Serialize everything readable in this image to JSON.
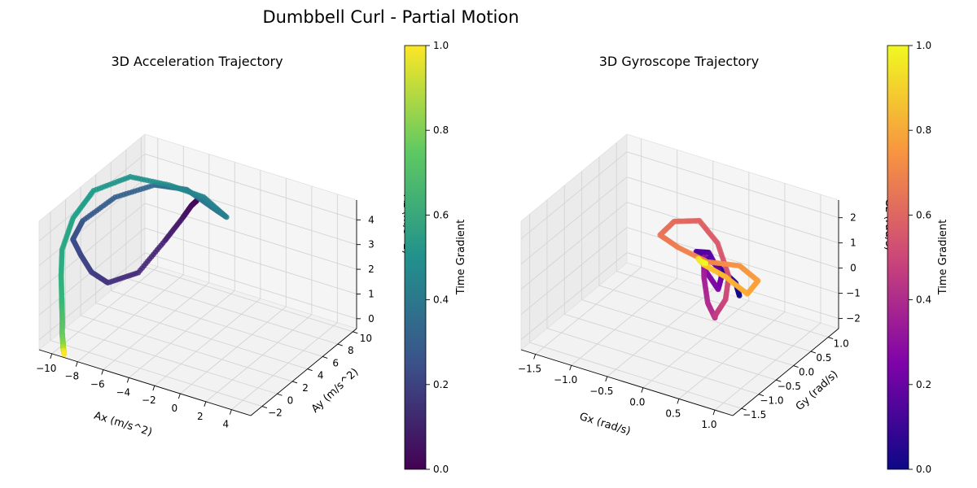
{
  "figure": {
    "title": "Dumbbell Curl - Partial Motion"
  },
  "chart_data": [
    {
      "type": "scatter3d",
      "title": "3D Acceleration Trajectory",
      "xlabel": "Ax (m/s^2)",
      "ylabel": "Ay (m/s^2)",
      "zlabel": "Az (m/s^2)",
      "xlim": [
        -11,
        5.5
      ],
      "ylim": [
        -3.5,
        10.5
      ],
      "zlim": [
        -0.4,
        4.8
      ],
      "xticks": [
        -10,
        -8,
        -6,
        -4,
        -2,
        0,
        2,
        4
      ],
      "xtick_labels": [
        "−10",
        "−8",
        "−6",
        "−4",
        "−2",
        "0",
        "2",
        "4"
      ],
      "yticks": [
        -2,
        0,
        2,
        4,
        6,
        8,
        10
      ],
      "ytick_labels": [
        "−2",
        "0",
        "2",
        "4",
        "6",
        "8",
        "10"
      ],
      "zticks": [
        0,
        1,
        2,
        3,
        4
      ],
      "ztick_labels": [
        "0",
        "1",
        "2",
        "3",
        "4"
      ],
      "colormap": "viridis",
      "colorbar": {
        "label": "Time Gradient",
        "range": [
          0,
          1
        ],
        "ticks": [
          "0.0",
          "0.2",
          "0.4",
          "0.6",
          "0.8",
          "1.0"
        ]
      },
      "grid": true,
      "series": [
        {
          "path": [
            [
              -5.2,
              7.5,
              3.8,
              0.0
            ],
            [
              -5.5,
              7.3,
              3.6,
              0.03
            ],
            [
              -6.0,
              7.0,
              3.1,
              0.06
            ],
            [
              -6.8,
              6.0,
              2.3,
              0.09
            ],
            [
              -7.8,
              4.2,
              1.3,
              0.12
            ],
            [
              -9.0,
              2.2,
              1.2,
              0.15
            ],
            [
              -9.8,
              1.4,
              1.7,
              0.18
            ],
            [
              -10.4,
              1.0,
              2.4,
              0.21
            ],
            [
              -10.9,
              0.8,
              3.0,
              0.24
            ],
            [
              -10.6,
              1.6,
              3.6,
              0.27
            ],
            [
              -9.2,
              3.5,
              4.3,
              0.3
            ],
            [
              -7.3,
              5.5,
              4.6,
              0.33
            ],
            [
              -5.7,
              7.0,
              4.3,
              0.36
            ],
            [
              -4.3,
              7.9,
              3.6,
              0.39
            ],
            [
              -3.4,
              8.4,
              3.2,
              0.42
            ],
            [
              -4.9,
              7.9,
              3.9,
              0.45
            ],
            [
              -6.8,
              6.6,
              4.4,
              0.48
            ],
            [
              -8.9,
              5.0,
              4.8,
              0.51
            ],
            [
              -10.7,
              3.2,
              4.4,
              0.54
            ],
            [
              -11.0,
              1.0,
              3.8,
              0.57
            ],
            [
              -10.8,
              -0.8,
              3.0,
              0.6
            ],
            [
              -10.4,
              -1.6,
              2.2,
              0.63
            ],
            [
              -10.0,
              -2.2,
              1.5,
              0.66
            ],
            [
              -9.8,
              -2.5,
              1.2,
              0.69
            ],
            [
              -9.6,
              -2.8,
              0.8,
              0.72
            ],
            [
              -9.5,
              -3.0,
              0.4,
              0.75
            ],
            [
              -9.4,
              -3.1,
              0.2,
              0.78
            ],
            [
              -9.3,
              -3.2,
              0.0,
              0.82
            ],
            [
              -9.3,
              -3.2,
              -0.1,
              0.86
            ],
            [
              -9.2,
              -3.3,
              -0.2,
              0.9
            ],
            [
              -9.2,
              -3.3,
              -0.2,
              0.95
            ],
            [
              -9.1,
              -3.4,
              -0.3,
              1.0
            ]
          ]
        }
      ]
    },
    {
      "type": "scatter3d",
      "title": "3D Gyroscope Trajectory",
      "xlabel": "Gx (rad/s)",
      "ylabel": "Gy (rad/s)",
      "zlabel": "Gz (rad/s)",
      "xlim": [
        -1.7,
        1.25
      ],
      "ylim": [
        -1.75,
        1.3
      ],
      "zlim": [
        -2.4,
        2.7
      ],
      "xticks": [
        -1.5,
        -1.0,
        -0.5,
        0.0,
        0.5,
        1.0
      ],
      "xtick_labels": [
        "−1.5",
        "−1.0",
        "−0.5",
        "0.0",
        "0.5",
        "1.0"
      ],
      "yticks": [
        -1.5,
        -1.0,
        -0.5,
        0.0,
        0.5,
        1.0
      ],
      "ytick_labels": [
        "−1.5",
        "−1.0",
        "−0.5",
        "0.0",
        "0.5",
        "1.0"
      ],
      "zticks": [
        -2,
        -1,
        0,
        1,
        2
      ],
      "ztick_labels": [
        "−2",
        "−1",
        "0",
        "1",
        "2"
      ],
      "colormap": "plasma",
      "colorbar": {
        "label": "Time Gradient",
        "range": [
          0,
          1
        ],
        "ticks": [
          "0.0",
          "0.2",
          "0.4",
          "0.6",
          "0.8",
          "1.0"
        ]
      },
      "grid": true,
      "series": [
        {
          "path": [
            [
              0.4,
              0.2,
              -0.6,
              0.0
            ],
            [
              0.3,
              0.3,
              -0.3,
              0.04
            ],
            [
              0.0,
              0.4,
              0.0,
              0.08
            ],
            [
              -0.3,
              0.4,
              0.3,
              0.12
            ],
            [
              -0.1,
              0.35,
              0.5,
              0.16
            ],
            [
              0.2,
              0.1,
              0.1,
              0.2
            ],
            [
              0.2,
              0.0,
              -0.3,
              0.24
            ],
            [
              0.0,
              0.05,
              0.2,
              0.28
            ],
            [
              0.0,
              0.0,
              0.8,
              0.32
            ],
            [
              0.1,
              -0.2,
              0.3,
              0.36
            ],
            [
              0.2,
              -0.3,
              -0.5,
              0.4
            ],
            [
              0.3,
              -0.3,
              -1.0,
              0.43
            ],
            [
              0.4,
              -0.5,
              -0.6,
              0.46
            ],
            [
              0.4,
              -0.2,
              -0.3,
              0.5
            ],
            [
              0.3,
              0.1,
              0.2,
              0.53
            ],
            [
              0.0,
              0.4,
              0.9,
              0.56
            ],
            [
              -0.4,
              0.7,
              1.1,
              0.59
            ],
            [
              -0.8,
              0.8,
              0.6,
              0.62
            ],
            [
              -0.9,
              0.6,
              0.2,
              0.65
            ],
            [
              -0.5,
              0.3,
              0.4,
              0.68
            ],
            [
              0.0,
              0.1,
              0.5,
              0.71
            ],
            [
              0.5,
              0.0,
              0.9,
              0.74
            ],
            [
              0.9,
              -0.3,
              1.0,
              0.77
            ],
            [
              0.8,
              -0.4,
              0.5,
              0.8
            ],
            [
              0.4,
              -0.2,
              0.6,
              0.84
            ],
            [
              0.0,
              0.0,
              0.5,
              0.88
            ],
            [
              -0.1,
              0.05,
              0.6,
              0.92
            ],
            [
              -0.05,
              0.0,
              0.6,
              0.96
            ],
            [
              0.0,
              0.05,
              0.5,
              1.0
            ]
          ]
        }
      ]
    }
  ]
}
